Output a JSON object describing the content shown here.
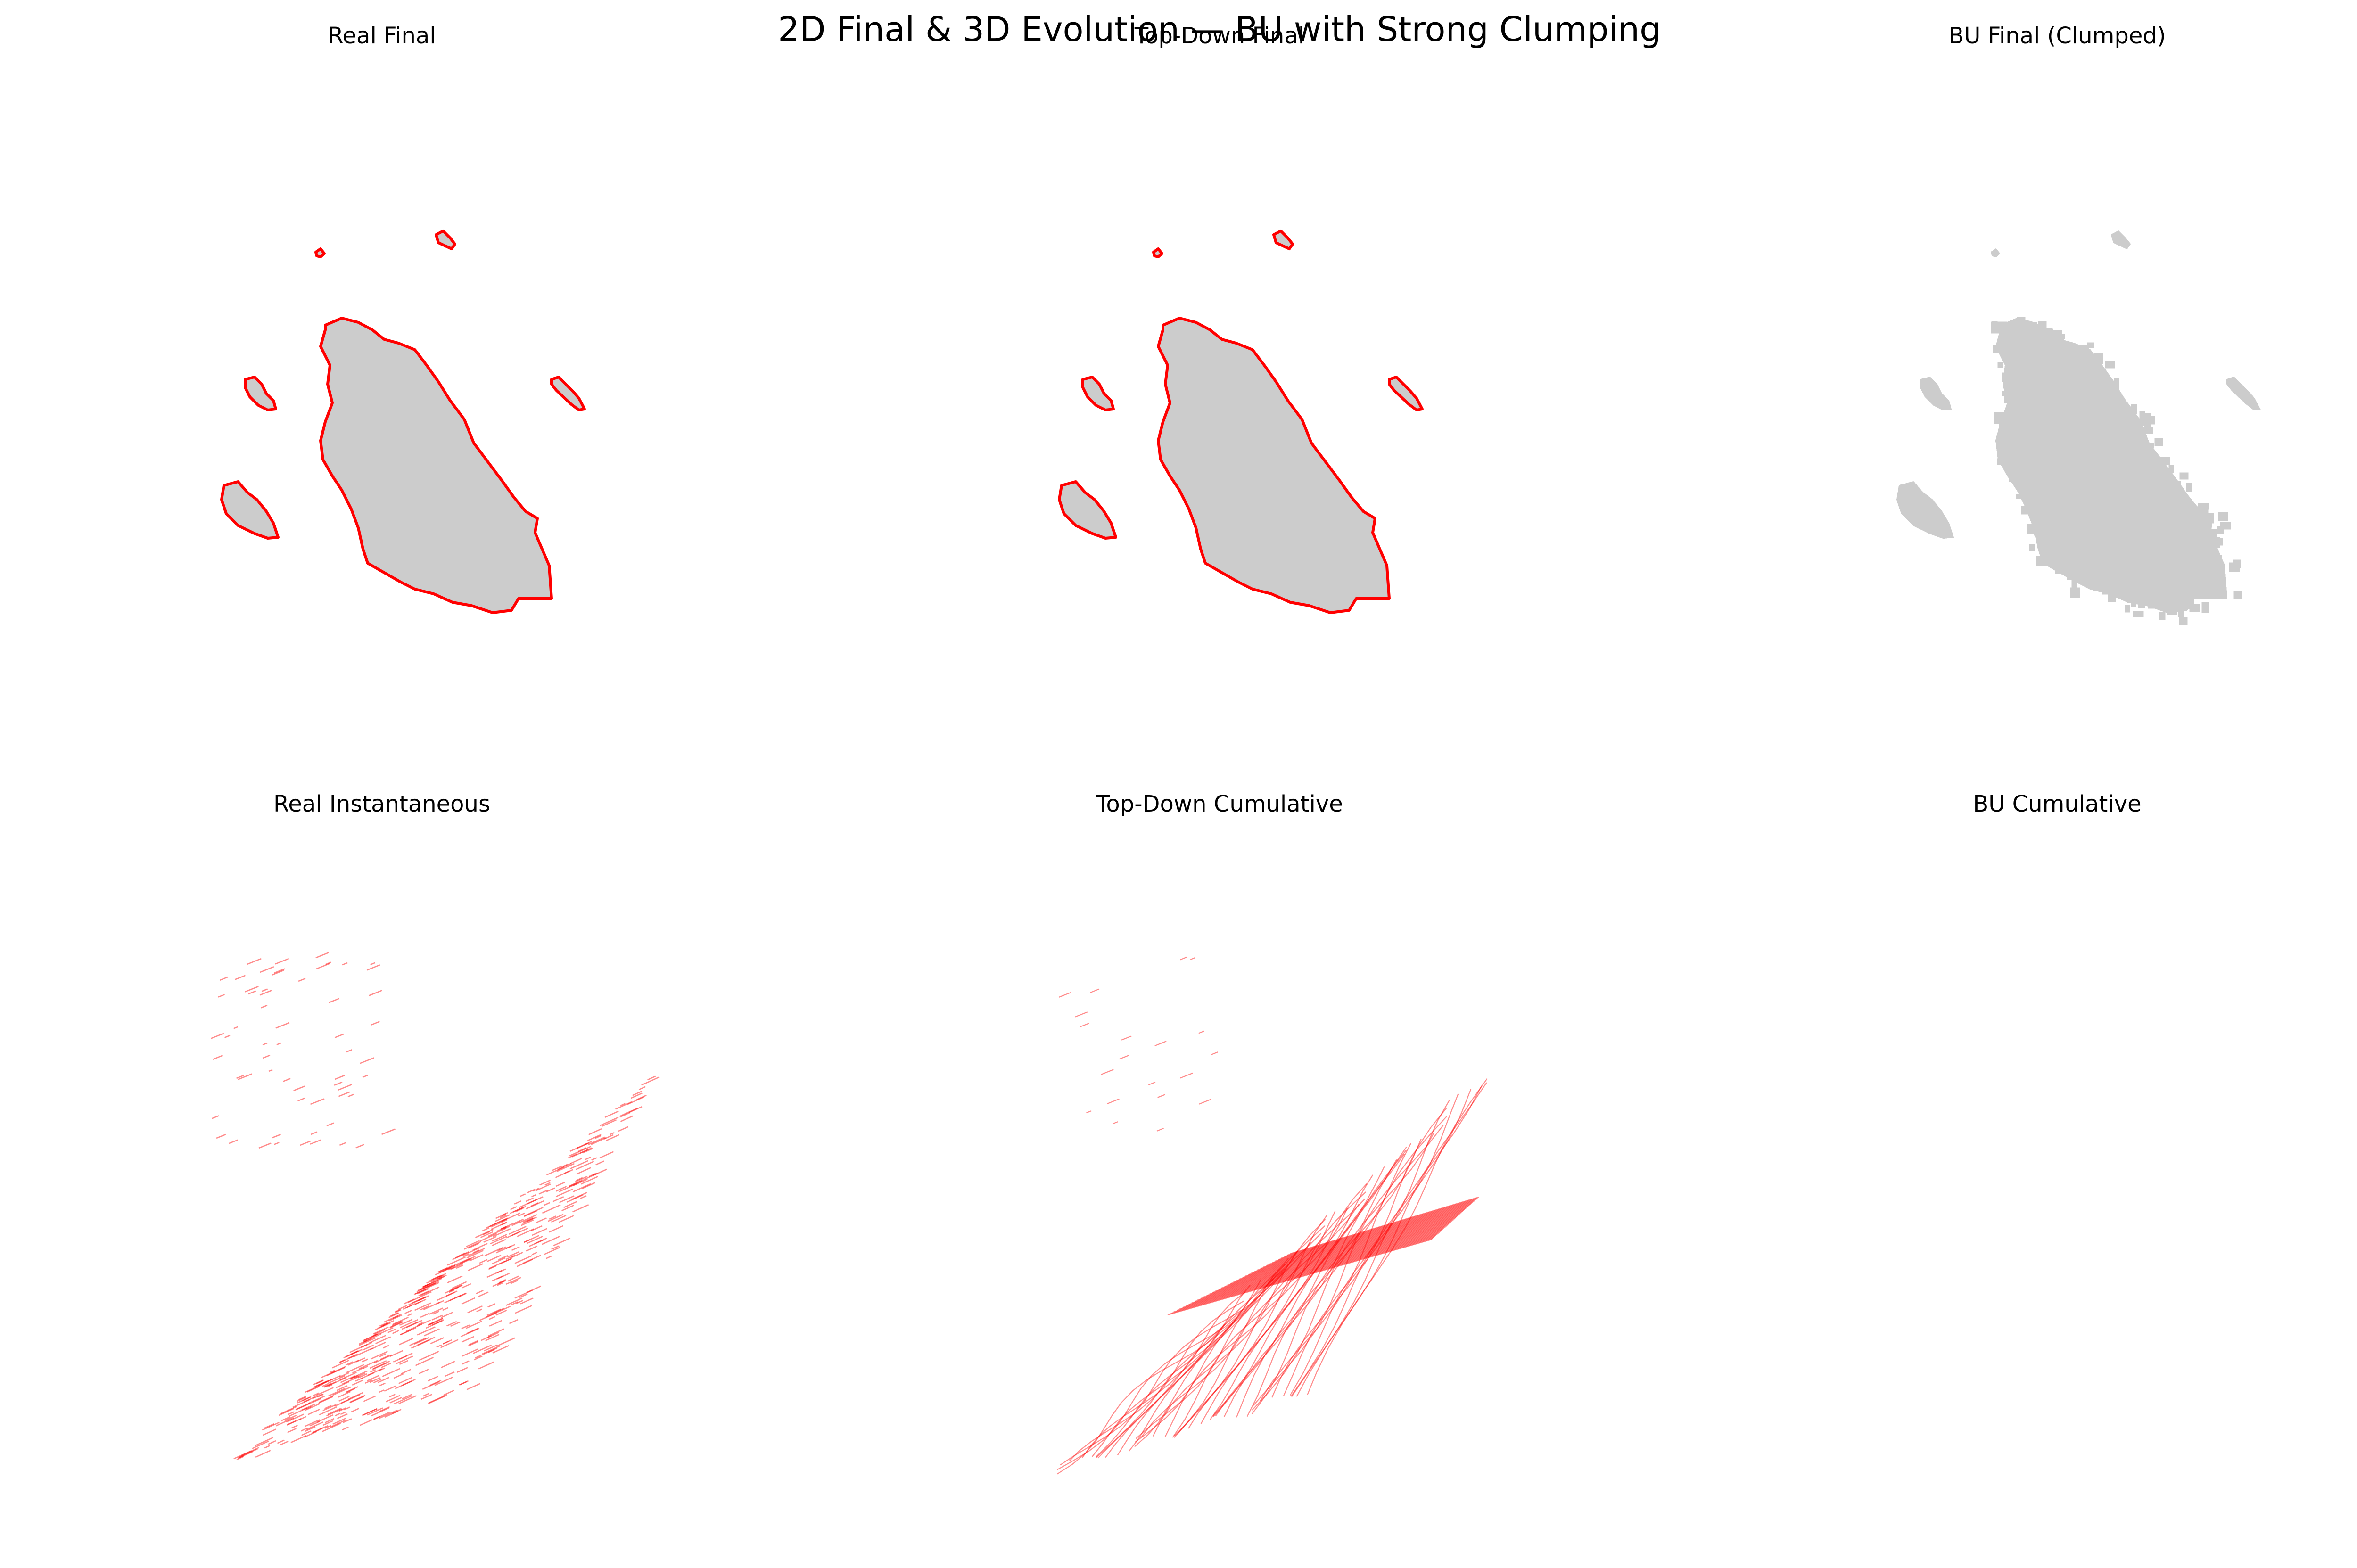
{
  "figure": {
    "suptitle": "2D Final & 3D Evolution — BU with Strong Clumping",
    "panels": [
      {
        "title": "Real Final",
        "kind": "final-outlined"
      },
      {
        "title": "Top-Down Final",
        "kind": "final-outlined"
      },
      {
        "title": "BU Final (Clumped)",
        "kind": "final-clumped"
      },
      {
        "title": "Real Instantaneous",
        "kind": "evolution-instantaneous"
      },
      {
        "title": "Top-Down Cumulative",
        "kind": "evolution-cumulative"
      },
      {
        "title": "BU Cumulative",
        "kind": "empty"
      }
    ]
  },
  "colors": {
    "fill": "#cccccc",
    "outline": "#ff0000",
    "contour": "#ff0000",
    "background": "#ffffff"
  }
}
